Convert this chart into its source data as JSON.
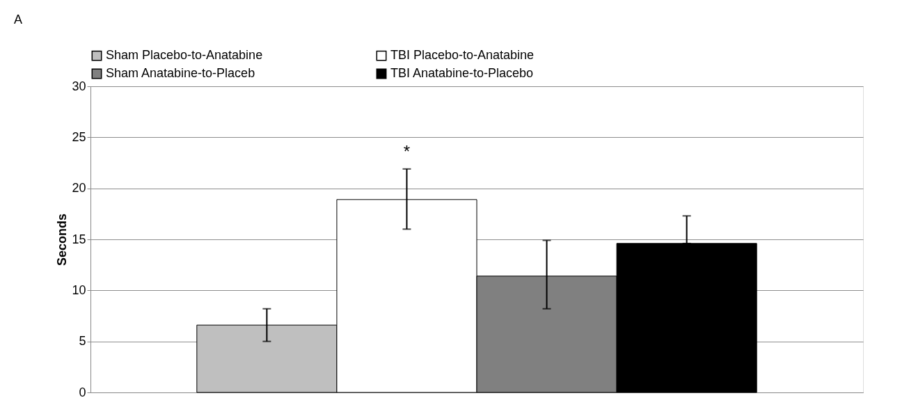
{
  "chart_data": {
    "type": "bar",
    "ylabel": "Seconds",
    "categories": [
      null
    ],
    "series": [
      {
        "name": "Sham Placebo-to-Anatabine",
        "color": "#bfbfbf",
        "values": [
          6.6
        ],
        "errors": [
          [
            5.0,
            8.2
          ]
        ]
      },
      {
        "name": "TBI Placebo-to-Anatabine",
        "color": "#ffffff",
        "values": [
          18.9
        ],
        "errors": [
          [
            16.0,
            21.9
          ]
        ]
      },
      {
        "name": "Sham Anatabine-to-Placeb",
        "color": "#808080",
        "values": [
          11.4
        ],
        "errors": [
          [
            8.2,
            14.9
          ]
        ]
      },
      {
        "name": "TBI Anatabine-to-Placebo",
        "color": "#000000",
        "values": [
          14.6
        ],
        "errors": [
          [
            14.6,
            17.3
          ]
        ]
      }
    ],
    "ylim": [
      0,
      30
    ],
    "yticks": [
      0,
      5,
      10,
      15,
      20,
      25,
      30
    ],
    "grid": "y",
    "legend": "top",
    "annotations": [
      "A",
      "*"
    ]
  }
}
